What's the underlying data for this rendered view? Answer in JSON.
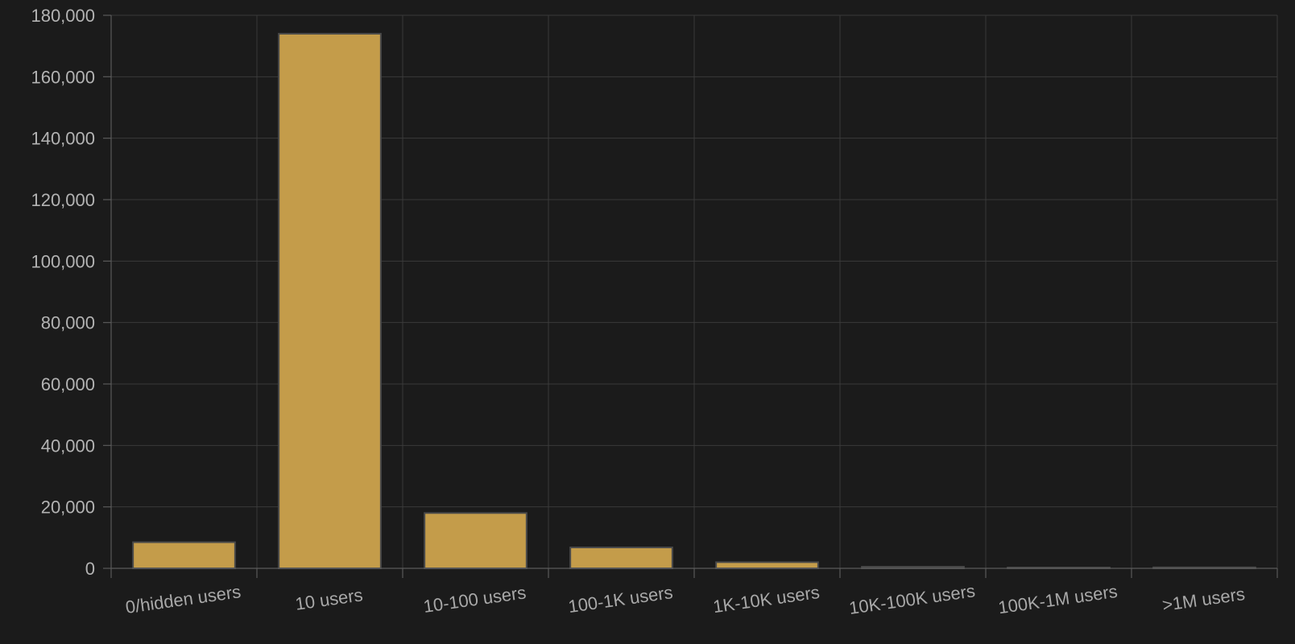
{
  "chart_data": {
    "type": "bar",
    "title": "",
    "xlabel": "",
    "ylabel": "",
    "categories": [
      "0/hidden users",
      "10 users",
      "10-100 users",
      "100-1K users",
      "1K-10K users",
      "10K-100K users",
      "100K-1M users",
      ">1M users"
    ],
    "values": [
      8500,
      174000,
      18000,
      6800,
      2000,
      500,
      100,
      300
    ],
    "ylim": [
      0,
      180000
    ],
    "yticks": [
      "0",
      "20,000",
      "40,000",
      "60,000",
      "80,000",
      "100,000",
      "120,000",
      "140,000",
      "160,000",
      "180,000"
    ],
    "grid": true,
    "legend": "none",
    "colors": {
      "bar": "#c49c4a",
      "background": "#1b1b1b"
    }
  }
}
